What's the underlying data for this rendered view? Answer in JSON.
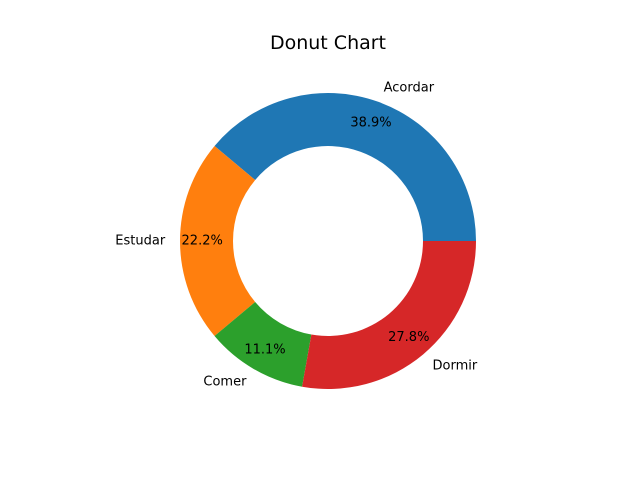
{
  "chart_data": {
    "type": "pie",
    "variant": "donut",
    "title": "Donut Chart",
    "categories": [
      "Acordar",
      "Estudar",
      "Comer",
      "Dormir"
    ],
    "values": [
      38.9,
      22.2,
      11.1,
      27.8
    ],
    "percent_labels": [
      "38.9%",
      "22.2%",
      "11.1%",
      "27.8%"
    ],
    "colors": [
      "#1f77b4",
      "#ff7f0e",
      "#2ca02c",
      "#d62728"
    ],
    "start_angle_deg": 0,
    "direction": "counterclockwise",
    "legend": "none"
  }
}
